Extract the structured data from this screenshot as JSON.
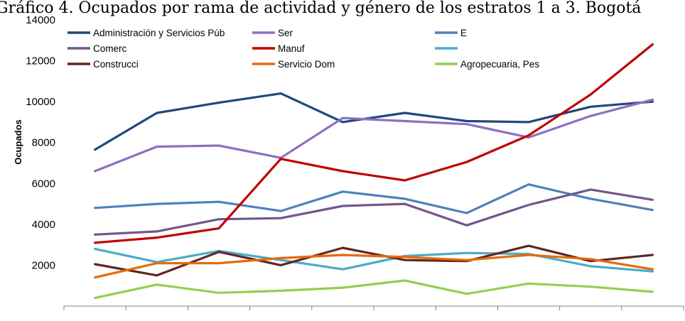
{
  "chart_data": {
    "type": "line",
    "title": "Gráfico 4. Ocupados por rama de actividad y género de los estratos 1 a 3. Bogotá",
    "ylabel": "Ocupados",
    "xlabel": "",
    "ylim": [
      0,
      14000
    ],
    "yticks": [
      2000,
      4000,
      6000,
      8000,
      10000,
      12000,
      14000
    ],
    "x": [
      1,
      2,
      3,
      4,
      5,
      6,
      7,
      8,
      9,
      10
    ],
    "grid": false,
    "legend": "top",
    "series": [
      {
        "name": "Administración y Servicios Públicos",
        "color": "#1f497d",
        "values": [
          7650,
          9450,
          9950,
          10400,
          9000,
          9450,
          9050,
          9000,
          9750,
          10000
        ]
      },
      {
        "name": "Servicios",
        "color": "#8e6fc1",
        "values": [
          6600,
          7800,
          7850,
          7250,
          9200,
          9050,
          8900,
          8250,
          9300,
          10100
        ]
      },
      {
        "name": "Educación",
        "color": "#4f81bd",
        "values": [
          4800,
          5000,
          5100,
          4650,
          5600,
          5250,
          4550,
          5950,
          5250,
          4700
        ]
      },
      {
        "name": "Comercio",
        "color": "#72568c",
        "values": [
          3500,
          3650,
          4250,
          4300,
          4900,
          5000,
          3950,
          4950,
          5700,
          5200
        ]
      },
      {
        "name": "Manufactura",
        "color": "#c00000",
        "values": [
          3100,
          3350,
          3800,
          7200,
          6600,
          6150,
          7050,
          8350,
          10350,
          12800
        ]
      },
      {
        "name": "",
        "color": "#4bacc6",
        "values": [
          2800,
          2150,
          2700,
          2250,
          1800,
          2450,
          2600,
          2550,
          1950,
          1700
        ]
      },
      {
        "name": "Construcción",
        "color": "#632523",
        "values": [
          2050,
          1500,
          2650,
          2000,
          2850,
          2250,
          2200,
          2950,
          2200,
          2500
        ]
      },
      {
        "name": "Servicio Doméstico",
        "color": "#e46c0a",
        "values": [
          1400,
          2100,
          2100,
          2350,
          2500,
          2400,
          2250,
          2500,
          2300,
          1800
        ]
      },
      {
        "name": "Agropecuaria, Pesca",
        "color": "#92d050",
        "values": [
          400,
          1050,
          650,
          750,
          900,
          1250,
          600,
          1100,
          950,
          700
        ]
      }
    ],
    "legend_entries": [
      {
        "label": "Administración y Servicios Púb",
        "color": "#1f497d"
      },
      {
        "label": "Ser",
        "color": "#8e6fc1"
      },
      {
        "label": "E",
        "color": "#4f81bd"
      },
      {
        "label": "Comerc",
        "color": "#72568c"
      },
      {
        "label": "Manuf",
        "color": "#c00000"
      },
      {
        "label": "",
        "color": "#4bacc6"
      },
      {
        "label": "Construcci",
        "color": "#632523"
      },
      {
        "label": "Servicio Dom",
        "color": "#e46c0a"
      },
      {
        "label": "Agropecuaria, Pes",
        "color": "#92d050"
      }
    ]
  }
}
